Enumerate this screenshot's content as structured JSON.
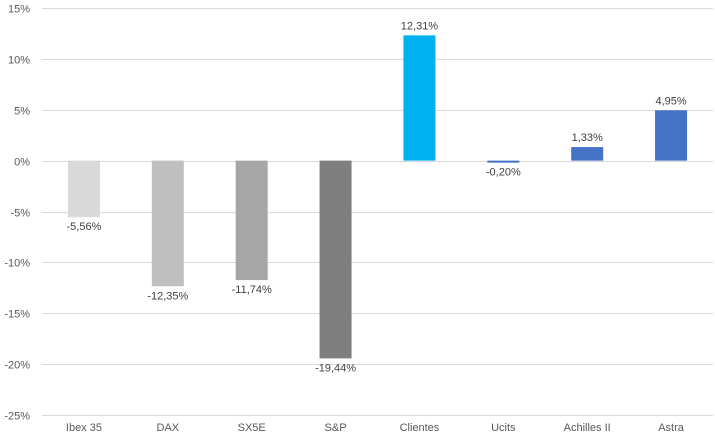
{
  "chart_data": {
    "type": "bar",
    "title": "",
    "xlabel": "",
    "ylabel": "",
    "ylim": [
      -25,
      15
    ],
    "yticks": [
      15,
      10,
      5,
      0,
      -5,
      -10,
      -15,
      -20,
      -25
    ],
    "ytick_labels": [
      "15%",
      "10%",
      "5%",
      "0%",
      "-5%",
      "-10%",
      "-15%",
      "-20%",
      "-25%"
    ],
    "grid": true,
    "legend": "none",
    "categories": [
      "Ibex 35",
      "DAX",
      "SX5E",
      "S&P",
      "Clientes",
      "Ucits",
      "Achilles II",
      "Astra"
    ],
    "values": [
      -5.56,
      -12.35,
      -11.74,
      -19.44,
      12.31,
      -0.2,
      1.33,
      4.95
    ],
    "data_labels": [
      "-5,56%",
      "-12,35%",
      "-11,74%",
      "-19,44%",
      "12,31%",
      "-0,20%",
      "1,33%",
      "4,95%"
    ],
    "colors": [
      "#d9d9d9",
      "#bfbfbf",
      "#a6a6a6",
      "#7f7f7f",
      "#00b0f0",
      "#4472c4",
      "#4472c4",
      "#4472c4"
    ]
  }
}
